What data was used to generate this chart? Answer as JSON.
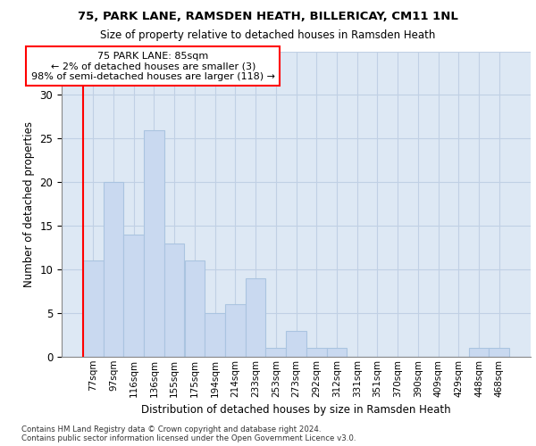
{
  "title1": "75, PARK LANE, RAMSDEN HEATH, BILLERICAY, CM11 1NL",
  "title2": "Size of property relative to detached houses in Ramsden Heath",
  "xlabel": "Distribution of detached houses by size in Ramsden Heath",
  "ylabel": "Number of detached properties",
  "categories": [
    "77sqm",
    "97sqm",
    "116sqm",
    "136sqm",
    "155sqm",
    "175sqm",
    "194sqm",
    "214sqm",
    "233sqm",
    "253sqm",
    "273sqm",
    "292sqm",
    "312sqm",
    "331sqm",
    "351sqm",
    "370sqm",
    "390sqm",
    "409sqm",
    "429sqm",
    "448sqm",
    "468sqm"
  ],
  "values": [
    11,
    20,
    14,
    26,
    13,
    11,
    5,
    6,
    9,
    1,
    3,
    1,
    1,
    0,
    0,
    0,
    0,
    0,
    0,
    1,
    1
  ],
  "bar_color": "#c9d9f0",
  "bar_edge_color": "#aac4e0",
  "annotation_text_line1": "75 PARK LANE: 85sqm",
  "annotation_text_line2": "← 2% of detached houses are smaller (3)",
  "annotation_text_line3": "98% of semi-detached houses are larger (118) →",
  "ylim": [
    0,
    35
  ],
  "yticks": [
    0,
    5,
    10,
    15,
    20,
    25,
    30,
    35
  ],
  "grid_color": "#c0d0e4",
  "bg_color": "#dde8f4",
  "footer1": "Contains HM Land Registry data © Crown copyright and database right 2024.",
  "footer2": "Contains public sector information licensed under the Open Government Licence v3.0."
}
